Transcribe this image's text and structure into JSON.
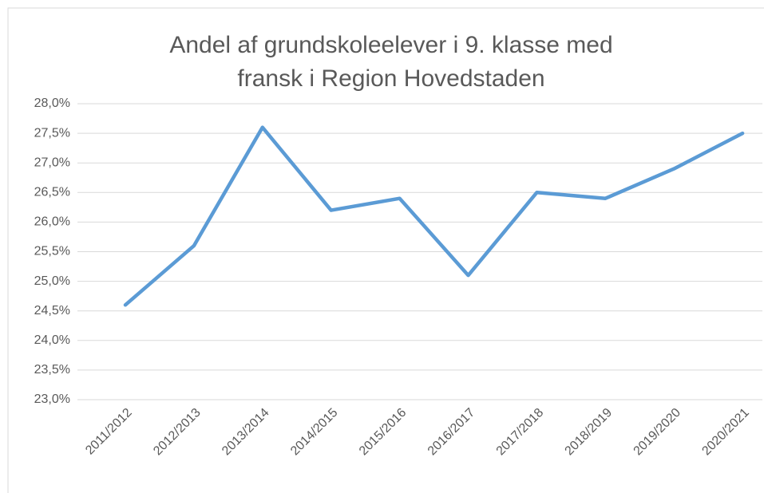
{
  "chart_data": {
    "type": "line",
    "title": "Andel af grundskoleelever i 9. klasse med fransk i Region Hovedstaden",
    "categories": [
      "2011/2012",
      "2012/2013",
      "2013/2014",
      "2014/2015",
      "2015/2016",
      "2016/2017",
      "2017/2018",
      "2018/2019",
      "2019/2020",
      "2020/2021"
    ],
    "values": [
      24.6,
      25.6,
      27.6,
      26.2,
      26.4,
      25.1,
      26.5,
      26.4,
      26.9,
      27.5
    ],
    "color": "#5b9bd5",
    "ylim": [
      23,
      28
    ],
    "yticks": [
      {
        "value": 23,
        "label": "23,0%"
      },
      {
        "value": 23.5,
        "label": "23,5%"
      },
      {
        "value": 24,
        "label": "24,0%"
      },
      {
        "value": 24.5,
        "label": "24,5%"
      },
      {
        "value": 25,
        "label": "25,0%"
      },
      {
        "value": 25.5,
        "label": "25,5%"
      },
      {
        "value": 26,
        "label": "26,0%"
      },
      {
        "value": 26.5,
        "label": "26,5%"
      },
      {
        "value": 27,
        "label": "27,0%"
      },
      {
        "value": 27.5,
        "label": "27,5%"
      },
      {
        "value": 28,
        "label": "28,0%"
      }
    ],
    "grid": true
  }
}
